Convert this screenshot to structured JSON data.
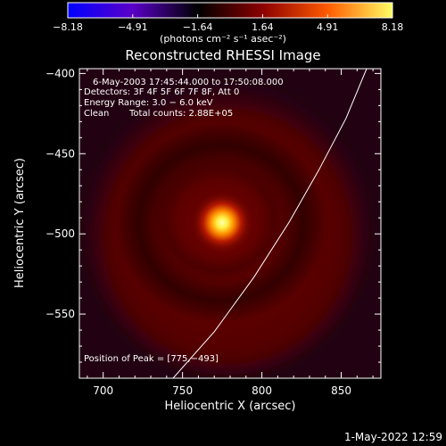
{
  "chart_data": {
    "type": "heatmap",
    "title": "Reconstructed RHESSI Image",
    "xlabel": "Heliocentric X (arcsec)",
    "ylabel": "Heliocentric Y (arcsec)",
    "xlim": [
      685,
      875
    ],
    "ylim": [
      -590,
      -397
    ],
    "x_ticks": [
      700,
      750,
      800,
      850
    ],
    "y_ticks": [
      -400,
      -450,
      -500,
      -550
    ],
    "x_tick_labels": [
      "700",
      "750",
      "800",
      "850"
    ],
    "y_tick_labels": [
      "−400",
      "−450",
      "−500",
      "−550"
    ],
    "colorbar": {
      "min": -8.18,
      "max": 8.18,
      "tick_labels": [
        "−8.18",
        "−4.91",
        "−1.64",
        "1.64",
        "4.91",
        "8.18"
      ],
      "units_label": "(photons cm⁻² s⁻¹ asec⁻²)",
      "colors": [
        "#0000ff",
        "#5a00c8",
        "#000000",
        "#8c0000",
        "#ff5a00",
        "#ffff64"
      ]
    },
    "annotations": {
      "time_range": "6‑May‑2003 17:45:44.000 to 17:50:08.000",
      "detectors": "Detectors: 3F 4F 5F 6F 7F 8F, Att 0",
      "energy_range": "Energy Range: 3.0 − 6.0 keV",
      "clean": "Clean",
      "total_counts": "Total counts: 2.88E+05",
      "peak_position": "Position of Peak = [775,−493]"
    },
    "peak": {
      "x": 775,
      "y": -493
    },
    "limb_curve": [
      [
        744,
        -590
      ],
      [
        770,
        -561
      ],
      [
        795,
        -527
      ],
      [
        817,
        -493
      ],
      [
        836,
        -460
      ],
      [
        853,
        -428
      ],
      [
        866,
        -397
      ]
    ]
  },
  "footer": {
    "timestamp": "1‑May‑2022 12:59"
  }
}
